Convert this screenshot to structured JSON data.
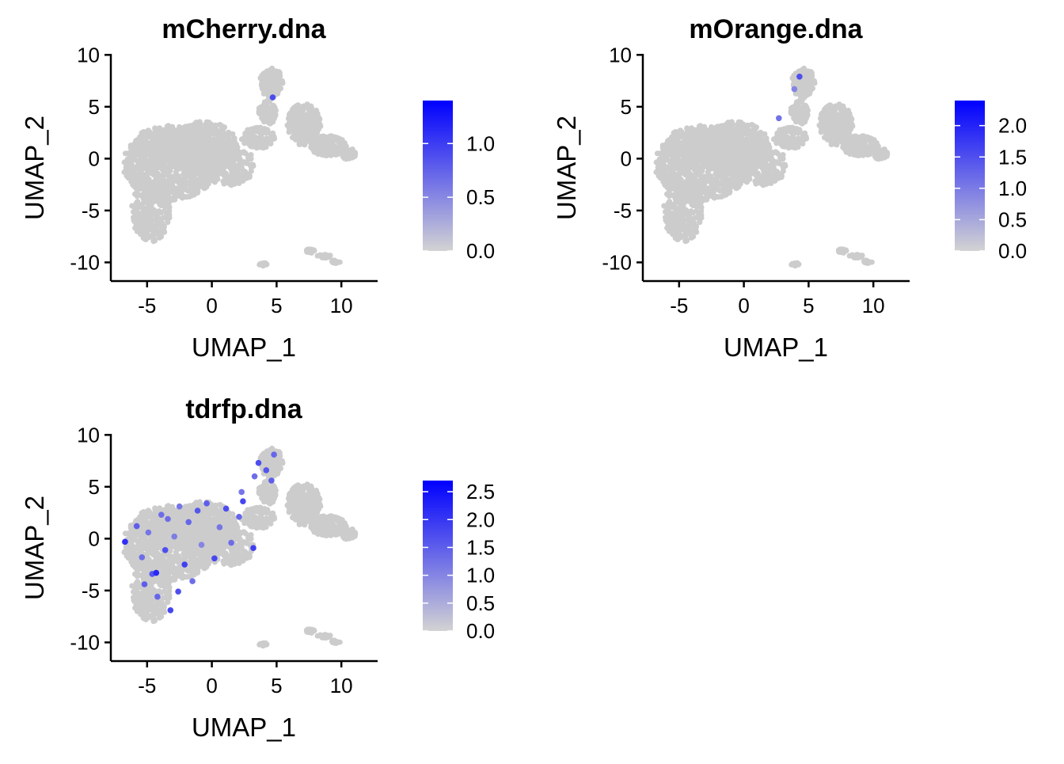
{
  "chart_data": [
    {
      "type": "scatter",
      "title": "mCherry.dna",
      "xlabel": "UMAP_1",
      "ylabel": "UMAP_2",
      "xlim": [
        -7.8,
        12.8
      ],
      "ylim": [
        -11.8,
        10.1
      ],
      "xticks": [
        -5,
        0,
        5,
        10
      ],
      "yticks": [
        -10,
        -5,
        0,
        5,
        10
      ],
      "grid": false,
      "legend": "right",
      "colorbar": {
        "min": 0.0,
        "max": 1.4,
        "ticks": [
          0.0,
          0.5,
          1.0
        ],
        "low_color": "#d3d3d3",
        "high_color": "#0000ff"
      },
      "expressed_points": [
        {
          "x": 4.7,
          "y": 5.9,
          "v": 0.6
        }
      ]
    },
    {
      "type": "scatter",
      "title": "mOrange.dna",
      "xlabel": "UMAP_1",
      "ylabel": "UMAP_2",
      "xlim": [
        -7.8,
        12.8
      ],
      "ylim": [
        -11.8,
        10.1
      ],
      "xticks": [
        -5,
        0,
        5,
        10
      ],
      "yticks": [
        -10,
        -5,
        0,
        5,
        10
      ],
      "grid": false,
      "legend": "right",
      "colorbar": {
        "min": 0.0,
        "max": 2.4,
        "ticks": [
          0.0,
          0.5,
          1.0,
          1.5,
          2.0
        ],
        "low_color": "#d3d3d3",
        "high_color": "#0000ff"
      },
      "expressed_points": [
        {
          "x": 4.3,
          "y": 7.9,
          "v": 1.2
        },
        {
          "x": 2.7,
          "y": 3.9,
          "v": 0.8
        },
        {
          "x": 3.9,
          "y": 6.7,
          "v": 0.6
        }
      ]
    },
    {
      "type": "scatter",
      "title": "tdrfp.dna",
      "xlabel": "UMAP_1",
      "ylabel": "UMAP_2",
      "xlim": [
        -7.8,
        12.8
      ],
      "ylim": [
        -11.8,
        10.1
      ],
      "xticks": [
        -5,
        0,
        5,
        10
      ],
      "yticks": [
        -10,
        -5,
        0,
        5,
        10
      ],
      "grid": false,
      "legend": "right",
      "colorbar": {
        "min": 0.0,
        "max": 2.7,
        "ticks": [
          0.0,
          0.5,
          1.0,
          1.5,
          2.0,
          2.5
        ],
        "low_color": "#d3d3d3",
        "high_color": "#0000ff"
      },
      "expressed_points": [
        {
          "x": -6.7,
          "y": -0.3,
          "v": 1.8
        },
        {
          "x": -5.8,
          "y": 1.2,
          "v": 1.2
        },
        {
          "x": -5.4,
          "y": -1.8,
          "v": 1.0
        },
        {
          "x": -4.9,
          "y": 0.6,
          "v": 0.9
        },
        {
          "x": -4.6,
          "y": -3.4,
          "v": 1.3
        },
        {
          "x": -4.2,
          "y": -5.6,
          "v": 1.1
        },
        {
          "x": -3.9,
          "y": 2.3,
          "v": 1.0
        },
        {
          "x": -3.6,
          "y": -1.1,
          "v": 1.4
        },
        {
          "x": -3.2,
          "y": -6.9,
          "v": 1.5
        },
        {
          "x": -2.9,
          "y": 0.2,
          "v": 0.8
        },
        {
          "x": -2.5,
          "y": 3.1,
          "v": 0.9
        },
        {
          "x": -2.1,
          "y": -2.5,
          "v": 1.6
        },
        {
          "x": -1.8,
          "y": 1.6,
          "v": 1.1
        },
        {
          "x": -1.5,
          "y": -4.1,
          "v": 1.0
        },
        {
          "x": -1.1,
          "y": 2.7,
          "v": 1.3
        },
        {
          "x": -0.8,
          "y": -0.6,
          "v": 0.7
        },
        {
          "x": -0.4,
          "y": 3.4,
          "v": 1.2
        },
        {
          "x": 0.2,
          "y": -1.9,
          "v": 1.5
        },
        {
          "x": 0.6,
          "y": 1.1,
          "v": 0.9
        },
        {
          "x": 1.1,
          "y": 2.9,
          "v": 1.4
        },
        {
          "x": 1.5,
          "y": -0.4,
          "v": 1.0
        },
        {
          "x": 2.1,
          "y": 2.1,
          "v": 1.1
        },
        {
          "x": 2.4,
          "y": 3.6,
          "v": 1.5
        },
        {
          "x": 3.2,
          "y": -0.9,
          "v": 1.6
        },
        {
          "x": 3.6,
          "y": 7.3,
          "v": 1.4
        },
        {
          "x": 4.2,
          "y": 6.6,
          "v": 1.3
        },
        {
          "x": 4.6,
          "y": 5.6,
          "v": 1.2
        },
        {
          "x": 4.8,
          "y": 8.1,
          "v": 1.1
        },
        {
          "x": 3.3,
          "y": 6.0,
          "v": 1.0
        },
        {
          "x": 2.3,
          "y": 4.5,
          "v": 0.9
        },
        {
          "x": -4.3,
          "y": -3.3,
          "v": 1.9
        },
        {
          "x": -5.2,
          "y": -4.4,
          "v": 1.2
        },
        {
          "x": -3.4,
          "y": 1.9,
          "v": 1.0
        },
        {
          "x": -2.6,
          "y": -5.1,
          "v": 1.4
        }
      ]
    }
  ]
}
